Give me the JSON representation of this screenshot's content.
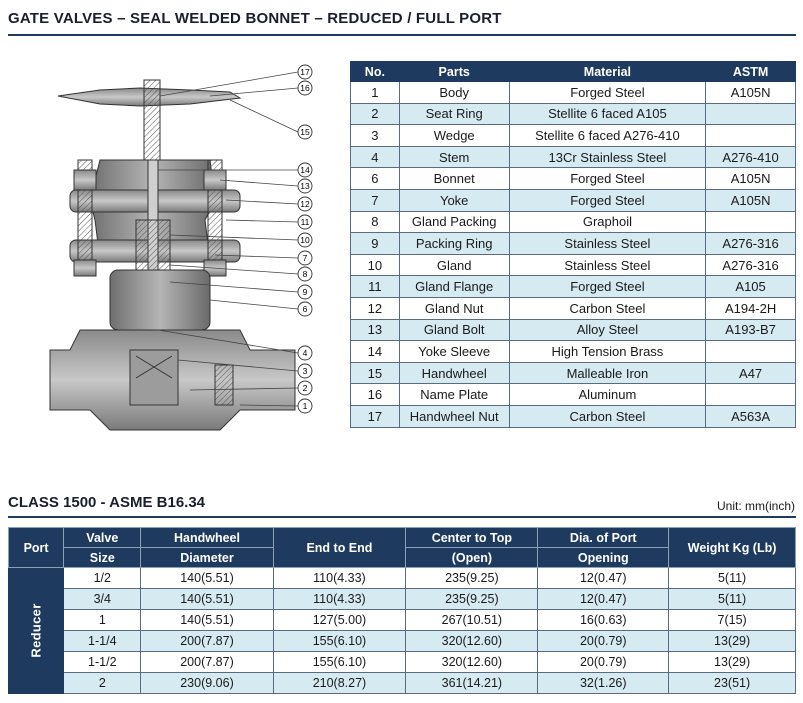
{
  "title": "GATE VALVES – SEAL WELDED BONNET – REDUCED / FULL PORT",
  "callouts": [
    "17",
    "16",
    "15",
    "14",
    "13",
    "12",
    "11",
    "10",
    "7",
    "8",
    "9",
    "6",
    "4",
    "3",
    "2",
    "1"
  ],
  "parts_table": {
    "headers": [
      "No.",
      "Parts",
      "Material",
      "ASTM"
    ],
    "rows": [
      {
        "no": "1",
        "part": "Body",
        "material": "Forged Steel",
        "astm": "A105N"
      },
      {
        "no": "2",
        "part": "Seat Ring",
        "material": "Stellite 6 faced A105",
        "astm": ""
      },
      {
        "no": "3",
        "part": "Wedge",
        "material": "Stellite 6 faced A276-410",
        "astm": ""
      },
      {
        "no": "4",
        "part": "Stem",
        "material": "13Cr Stainless Steel",
        "astm": "A276-410"
      },
      {
        "no": "6",
        "part": "Bonnet",
        "material": "Forged Steel",
        "astm": "A105N"
      },
      {
        "no": "7",
        "part": "Yoke",
        "material": "Forged Steel",
        "astm": "A105N"
      },
      {
        "no": "8",
        "part": "Gland Packing",
        "material": "Graphoil",
        "astm": ""
      },
      {
        "no": "9",
        "part": "Packing Ring",
        "material": "Stainless Steel",
        "astm": "A276-316"
      },
      {
        "no": "10",
        "part": "Gland",
        "material": "Stainless Steel",
        "astm": "A276-316"
      },
      {
        "no": "11",
        "part": "Gland Flange",
        "material": "Forged Steel",
        "astm": "A105"
      },
      {
        "no": "12",
        "part": "Gland Nut",
        "material": "Carbon Steel",
        "astm": "A194-2H"
      },
      {
        "no": "13",
        "part": "Gland Bolt",
        "material": "Alloy Steel",
        "astm": "A193-B7"
      },
      {
        "no": "14",
        "part": "Yoke Sleeve",
        "material": "High Tension Brass",
        "astm": ""
      },
      {
        "no": "15",
        "part": "Handwheel",
        "material": "Malleable Iron",
        "astm": "A47"
      },
      {
        "no": "16",
        "part": "Name Plate",
        "material": "Aluminum",
        "astm": ""
      },
      {
        "no": "17",
        "part": "Handwheel Nut",
        "material": "Carbon Steel",
        "astm": "A563A"
      }
    ]
  },
  "class_section": {
    "title": "CLASS 1500 - ASME B16.34",
    "unit": "Unit: mm(inch)",
    "headers": {
      "port": "Port",
      "valve_size_1": "Valve",
      "valve_size_2": "Size",
      "handwheel_1": "Handwheel",
      "handwheel_2": "Diameter",
      "end_to_end": "End to End",
      "center_top_1": "Center to Top",
      "center_top_2": "(Open)",
      "dia_port_1": "Dia. of Port",
      "dia_port_2": "Opening",
      "weight": "Weight Kg (Lb)"
    },
    "port_label": "Reducer",
    "rows": [
      {
        "size": "1/2",
        "handwheel": "140(5.51)",
        "end_to_end": "110(4.33)",
        "center_top": "235(9.25)",
        "dia_port": "12(0.47)",
        "weight": "5(11)"
      },
      {
        "size": "3/4",
        "handwheel": "140(5.51)",
        "end_to_end": "110(4.33)",
        "center_top": "235(9.25)",
        "dia_port": "12(0.47)",
        "weight": "5(11)"
      },
      {
        "size": "1",
        "handwheel": "140(5.51)",
        "end_to_end": "127(5.00)",
        "center_top": "267(10.51)",
        "dia_port": "16(0.63)",
        "weight": "7(15)"
      },
      {
        "size": "1-1/4",
        "handwheel": "200(7.87)",
        "end_to_end": "155(6.10)",
        "center_top": "320(12.60)",
        "dia_port": "20(0.79)",
        "weight": "13(29)"
      },
      {
        "size": "1-1/2",
        "handwheel": "200(7.87)",
        "end_to_end": "155(6.10)",
        "center_top": "320(12.60)",
        "dia_port": "20(0.79)",
        "weight": "13(29)"
      },
      {
        "size": "2",
        "handwheel": "230(9.06)",
        "end_to_end": "210(8.27)",
        "center_top": "361(14.21)",
        "dia_port": "32(1.26)",
        "weight": "23(51)"
      }
    ]
  }
}
